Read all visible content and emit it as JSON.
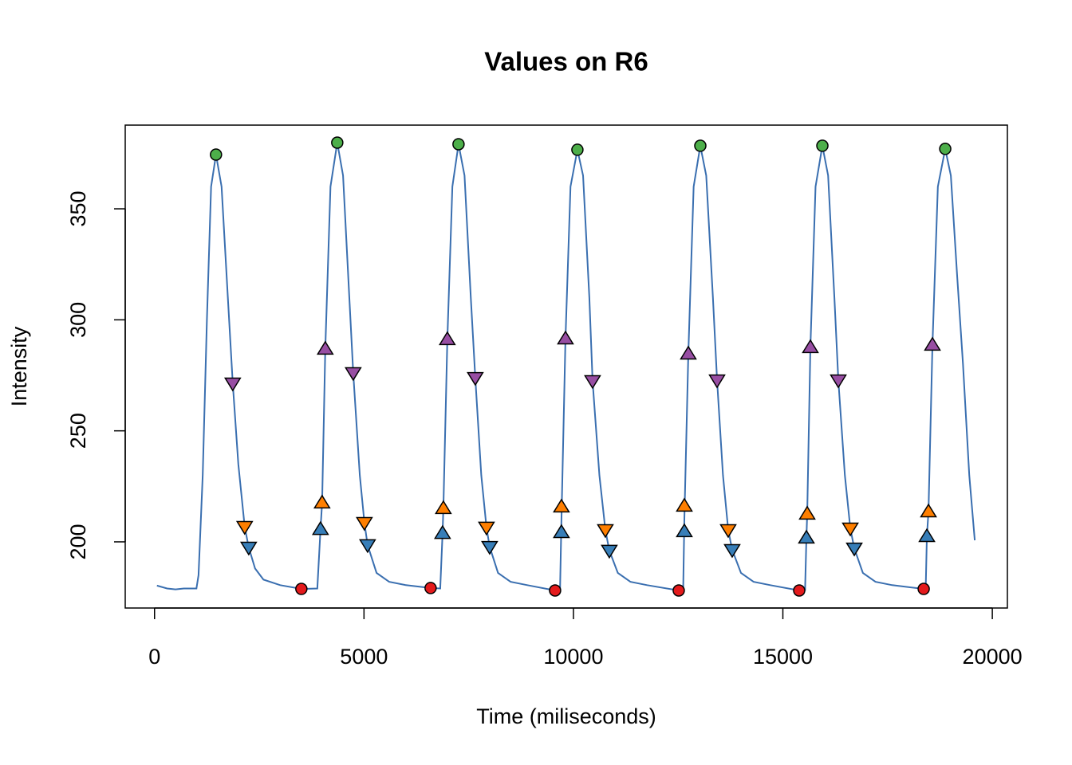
{
  "chart_data": {
    "type": "line",
    "title": "Values on R6",
    "x_label": "Time (miliseconds)",
    "y_label": "Intensity",
    "xlim": [
      -700,
      20360
    ],
    "ylim": [
      170.2,
      387.7
    ],
    "xticks": [
      0,
      5000,
      10000,
      15000,
      20000
    ],
    "yticks": [
      200,
      250,
      300,
      350
    ],
    "series": [
      {
        "marker": "line",
        "color": "#3a6fb0",
        "x": [
          57,
          300,
          500,
          700,
          1000,
          1050,
          1150,
          1250,
          1350,
          1467,
          1600,
          1750,
          1867,
          2000,
          2152,
          2248,
          2400,
          2600,
          3000,
          3505,
          3886,
          3962,
          4000,
          4076,
          4200,
          4362,
          4500,
          4650,
          4743,
          4900,
          5010,
          5086,
          5300,
          5600,
          6000,
          6590,
          6820,
          6876,
          6895,
          6990,
          7110,
          7257,
          7400,
          7550,
          7657,
          7800,
          7924,
          8000,
          8200,
          8500,
          8900,
          9562,
          9680,
          9714,
          9810,
          9930,
          10095,
          10230,
          10380,
          10457,
          10620,
          10762,
          10857,
          11060,
          11360,
          11760,
          12514,
          12620,
          12648,
          12743,
          12870,
          13029,
          13170,
          13330,
          13429,
          13570,
          13695,
          13790,
          14000,
          14300,
          14700,
          15390,
          15530,
          15562,
          15581,
          15657,
          15780,
          15943,
          16080,
          16230,
          16324,
          16480,
          16610,
          16705,
          16910,
          17210,
          17610,
          18362,
          18410,
          18438,
          18476,
          18571,
          18700,
          18876,
          19010,
          19160,
          19300,
          19450,
          19581
        ],
        "values": [
          180.3,
          179,
          178.6,
          179,
          179,
          185,
          230,
          300,
          360,
          374.4,
          360,
          310,
          271.4,
          235,
          206.8,
          197.5,
          188,
          183,
          180.5,
          178.8,
          179,
          205.7,
          217.6,
          286.9,
          360,
          379.8,
          365,
          310,
          276.1,
          230,
          208.6,
          198.6,
          186,
          182,
          180.5,
          179.2,
          179,
          203.9,
          215.1,
          291.2,
          360,
          379.1,
          365,
          310,
          273.9,
          230,
          206.5,
          197.8,
          186,
          182,
          180.5,
          178.1,
          178.2,
          210,
          291.5,
          360,
          376.6,
          365,
          310,
          272.5,
          230,
          205.4,
          196.1,
          186,
          182,
          180.5,
          178.1,
          178.3,
          210,
          284.7,
          360,
          378.4,
          365,
          310,
          272.8,
          230,
          205.4,
          196.4,
          186,
          182,
          180.5,
          178.1,
          178.3,
          201.8,
          212.6,
          287.6,
          360,
          378.4,
          365,
          310,
          272.8,
          230,
          206.1,
          197.1,
          186,
          182,
          180.5,
          178.8,
          179,
          202.5,
          213.6,
          288.7,
          360,
          377,
          365,
          320,
          280,
          230,
          200.7
        ]
      },
      {
        "marker": "circle",
        "color": "#4daf4a",
        "x": [
          1467,
          4362,
          7257,
          10095,
          13029,
          15943,
          18876
        ],
        "values": [
          374.4,
          379.8,
          379.1,
          376.6,
          378.4,
          378.4,
          377.0
        ]
      },
      {
        "marker": "circle",
        "color": "#e41a1c",
        "x": [
          3505,
          6590,
          9562,
          12514,
          15390,
          18362
        ],
        "values": [
          178.8,
          179.2,
          178.1,
          178.1,
          178.1,
          178.8
        ]
      },
      {
        "marker": "triangle-up",
        "color": "#377eb8",
        "x": [
          3962,
          6876,
          9714,
          12648,
          15562,
          18438
        ],
        "values": [
          205.7,
          203.9,
          204.3,
          204.7,
          201.8,
          202.5
        ]
      },
      {
        "marker": "triangle-up",
        "color": "#ff7f00",
        "x": [
          4000,
          6895,
          9714,
          12648,
          15581,
          18476
        ],
        "values": [
          217.6,
          215.1,
          215.8,
          216.2,
          212.6,
          213.6
        ]
      },
      {
        "marker": "triangle-up",
        "color": "#984ea3",
        "x": [
          4076,
          6990,
          9810,
          12743,
          15657,
          18571
        ],
        "values": [
          286.9,
          291.2,
          291.5,
          284.7,
          287.6,
          288.7
        ]
      },
      {
        "marker": "triangle-down",
        "color": "#984ea3",
        "x": [
          1867,
          4743,
          7657,
          10457,
          13429,
          16324
        ],
        "values": [
          271.4,
          276.1,
          273.9,
          272.5,
          272.8,
          272.8
        ]
      },
      {
        "marker": "triangle-down",
        "color": "#ff7f00",
        "x": [
          2152,
          5010,
          7924,
          10762,
          13695,
          16610
        ],
        "values": [
          206.8,
          208.6,
          206.5,
          205.4,
          205.4,
          206.1
        ]
      },
      {
        "marker": "triangle-down",
        "color": "#377eb8",
        "x": [
          2248,
          5086,
          8000,
          10857,
          13790,
          16705
        ],
        "values": [
          197.5,
          198.6,
          197.8,
          196.1,
          196.4,
          197.1
        ]
      }
    ]
  }
}
